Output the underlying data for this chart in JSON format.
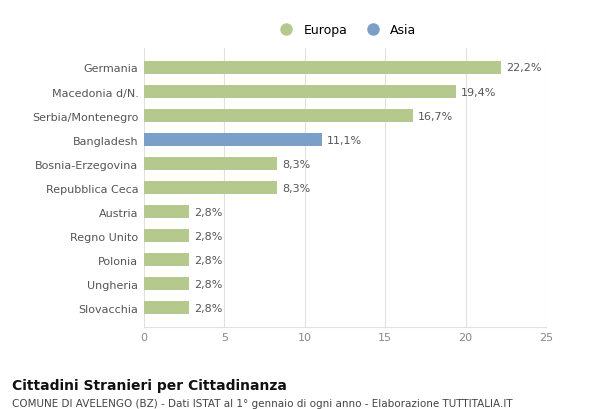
{
  "categories": [
    "Germania",
    "Macedonia d/N.",
    "Serbia/Montenegro",
    "Bangladesh",
    "Bosnia-Erzegovina",
    "Repubblica Ceca",
    "Austria",
    "Regno Unito",
    "Polonia",
    "Ungheria",
    "Slovacchia"
  ],
  "values": [
    22.2,
    19.4,
    16.7,
    11.1,
    8.3,
    8.3,
    2.8,
    2.8,
    2.8,
    2.8,
    2.8
  ],
  "labels": [
    "22,2%",
    "19,4%",
    "16,7%",
    "11,1%",
    "8,3%",
    "8,3%",
    "2,8%",
    "2,8%",
    "2,8%",
    "2,8%",
    "2,8%"
  ],
  "colors": [
    "#b5c98e",
    "#b5c98e",
    "#b5c98e",
    "#7b9fc7",
    "#b5c98e",
    "#b5c98e",
    "#b5c98e",
    "#b5c98e",
    "#b5c98e",
    "#b5c98e",
    "#b5c98e"
  ],
  "europa_color": "#b5c98e",
  "asia_color": "#7b9fc7",
  "legend_europa": "Europa",
  "legend_asia": "Asia",
  "title": "Cittadini Stranieri per Cittadinanza",
  "subtitle": "COMUNE DI AVELENGO (BZ) - Dati ISTAT al 1° gennaio di ogni anno - Elaborazione TUTTITALIA.IT",
  "xlim": [
    0,
    25
  ],
  "xticks": [
    0,
    5,
    10,
    15,
    20,
    25
  ],
  "bg_color": "#ffffff",
  "bar_height": 0.55,
  "grid_color": "#e0e0e0",
  "label_color": "#555555",
  "ytick_fontsize": 8.0,
  "xtick_fontsize": 8.0,
  "label_fontsize": 8.0,
  "title_fontsize": 10.0,
  "subtitle_fontsize": 7.5
}
